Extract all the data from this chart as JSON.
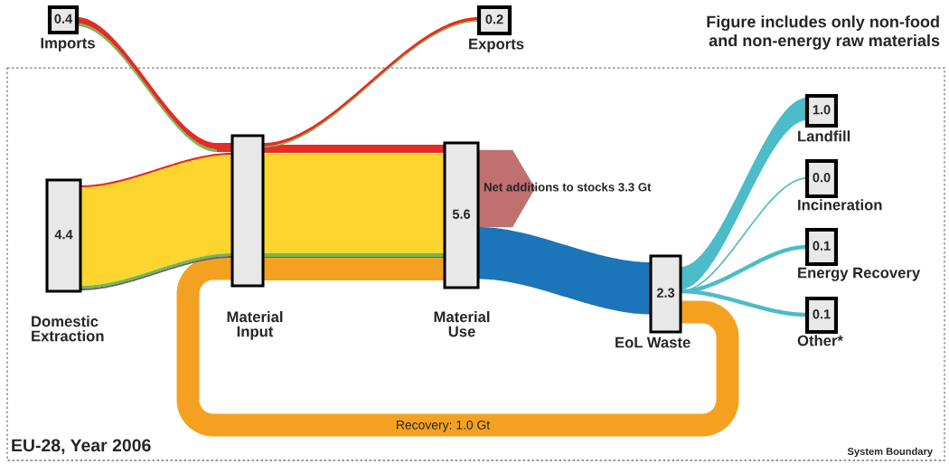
{
  "chart_data": {
    "type": "other",
    "title": "EU-28, Year 2006",
    "categories": [
      "Imports",
      "Exports",
      "Domestic Extraction",
      "Material Input",
      "Material Use",
      "EoL Waste",
      "Landfill",
      "Incineration",
      "Energy Recovery",
      "Other*"
    ],
    "values": [
      0.4,
      0.2,
      4.4,
      null,
      5.6,
      2.3,
      1.0,
      0.0,
      0.1,
      0.1
    ],
    "value_labels": [
      "0.4",
      "0.2",
      "4.4",
      null,
      "5.6",
      "2.3",
      "1.0",
      "0.0",
      "0.1",
      "0.1"
    ],
    "annotations": [
      "Figure includes only non-food and non-energy raw materials",
      "Net additions to stocks 3.3 Gt",
      "Recovery: 1.0 Gt",
      "System Boundary"
    ]
  }
}
